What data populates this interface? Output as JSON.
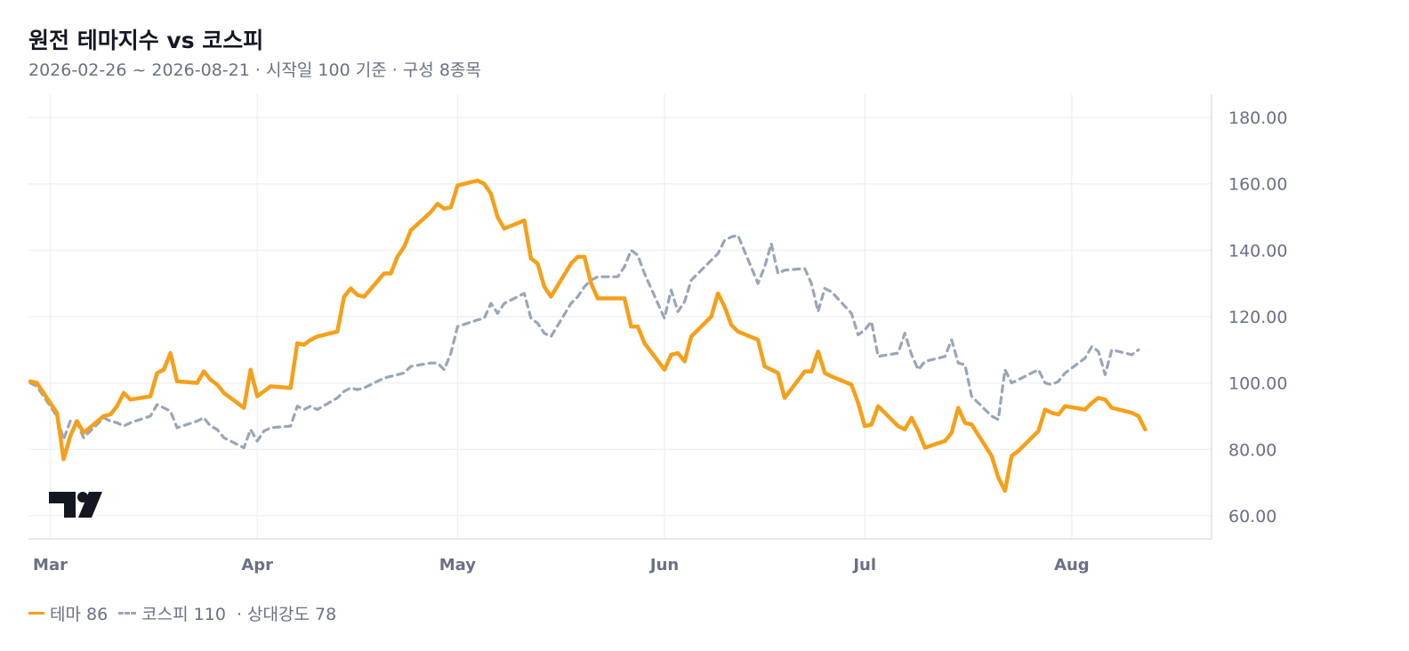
{
  "header": {
    "title": "원전 테마지수 vs 코스피",
    "subtitle": "2026-02-26 ~ 2026-08-21 · 시작일 100 기준 · 구성 8종목"
  },
  "legend": {
    "theme_label": "테마 86",
    "kospi_label": "코스피 110",
    "strength_label": "· 상대강도 78"
  },
  "colors": {
    "theme": "#f5a01a",
    "kospi": "#9aa5b8",
    "grid": "#eef1f5",
    "axis_text": "#6a7185"
  },
  "chart_data": {
    "type": "line",
    "x_start": "2026-02-26",
    "x_end": "2026-08-21",
    "ylim": [
      53,
      187
    ],
    "y_ticks": [
      "180.00",
      "160.00",
      "140.00",
      "120.00",
      "100.00",
      "80.00",
      "60.00"
    ],
    "y_tick_values": [
      180,
      160,
      140,
      120,
      100,
      80,
      60
    ],
    "x_ticks": [
      {
        "label": "Mar",
        "date": "2026-03-01"
      },
      {
        "label": "Apr",
        "date": "2026-04-01"
      },
      {
        "label": "May",
        "date": "2026-05-01"
      },
      {
        "label": "Jun",
        "date": "2026-06-01"
      },
      {
        "label": "Jul",
        "date": "2026-07-01"
      },
      {
        "label": "Aug",
        "date": "2026-08-01"
      }
    ],
    "grid": true,
    "series": [
      {
        "name": "테마",
        "style": "solid",
        "points": [
          [
            "2026-02-26",
            100.5
          ],
          [
            "2026-02-27",
            100
          ],
          [
            "2026-03-02",
            91
          ],
          [
            "2026-03-03",
            77
          ],
          [
            "2026-03-04",
            84
          ],
          [
            "2026-03-05",
            88.5
          ],
          [
            "2026-03-06",
            85
          ],
          [
            "2026-03-09",
            90
          ],
          [
            "2026-03-10",
            90.5
          ],
          [
            "2026-03-11",
            93
          ],
          [
            "2026-03-12",
            97
          ],
          [
            "2026-03-13",
            95
          ],
          [
            "2026-03-16",
            96
          ],
          [
            "2026-03-17",
            103
          ],
          [
            "2026-03-18",
            104
          ],
          [
            "2026-03-19",
            109
          ],
          [
            "2026-03-20",
            100.5
          ],
          [
            "2026-03-23",
            100
          ],
          [
            "2026-03-24",
            103.5
          ],
          [
            "2026-03-25",
            101
          ],
          [
            "2026-03-26",
            99.5
          ],
          [
            "2026-03-27",
            97
          ],
          [
            "2026-03-30",
            92.5
          ],
          [
            "2026-03-31",
            104
          ],
          [
            "2026-04-01",
            96
          ],
          [
            "2026-04-02",
            97.5
          ],
          [
            "2026-04-03",
            99
          ],
          [
            "2026-04-06",
            98.5
          ],
          [
            "2026-04-07",
            112
          ],
          [
            "2026-04-08",
            111.5
          ],
          [
            "2026-04-09",
            113
          ],
          [
            "2026-04-10",
            114
          ],
          [
            "2026-04-13",
            115.5
          ],
          [
            "2026-04-14",
            126
          ],
          [
            "2026-04-15",
            128.5
          ],
          [
            "2026-04-16",
            126.5
          ],
          [
            "2026-04-17",
            126
          ],
          [
            "2026-04-20",
            133
          ],
          [
            "2026-04-21",
            133
          ],
          [
            "2026-04-22",
            138
          ],
          [
            "2026-04-23",
            141
          ],
          [
            "2026-04-24",
            146
          ],
          [
            "2026-04-27",
            151.5
          ],
          [
            "2026-04-28",
            154
          ],
          [
            "2026-04-29",
            152.5
          ],
          [
            "2026-04-30",
            153
          ],
          [
            "2026-05-01",
            159.5
          ],
          [
            "2026-05-04",
            161
          ],
          [
            "2026-05-05",
            160
          ],
          [
            "2026-05-06",
            157
          ],
          [
            "2026-05-07",
            150
          ],
          [
            "2026-05-08",
            146.5
          ],
          [
            "2026-05-11",
            149
          ],
          [
            "2026-05-12",
            137.5
          ],
          [
            "2026-05-13",
            136
          ],
          [
            "2026-05-14",
            129
          ],
          [
            "2026-05-15",
            126
          ],
          [
            "2026-05-18",
            136
          ],
          [
            "2026-05-19",
            138
          ],
          [
            "2026-05-20",
            138
          ],
          [
            "2026-05-21",
            130
          ],
          [
            "2026-05-22",
            125.5
          ],
          [
            "2026-05-25",
            125.5
          ],
          [
            "2026-05-26",
            125.5
          ],
          [
            "2026-05-27",
            117
          ],
          [
            "2026-05-28",
            117
          ],
          [
            "2026-05-29",
            112
          ],
          [
            "2026-06-01",
            104
          ],
          [
            "2026-06-02",
            108.5
          ],
          [
            "2026-06-03",
            109
          ],
          [
            "2026-06-04",
            106.5
          ],
          [
            "2026-06-05",
            114
          ],
          [
            "2026-06-08",
            120
          ],
          [
            "2026-06-09",
            127
          ],
          [
            "2026-06-10",
            123
          ],
          [
            "2026-06-11",
            117.5
          ],
          [
            "2026-06-12",
            115.5
          ],
          [
            "2026-06-15",
            113
          ],
          [
            "2026-06-16",
            105
          ],
          [
            "2026-06-17",
            104
          ],
          [
            "2026-06-18",
            103
          ],
          [
            "2026-06-19",
            95.5
          ],
          [
            "2026-06-22",
            103.5
          ],
          [
            "2026-06-23",
            103.5
          ],
          [
            "2026-06-24",
            109.5
          ],
          [
            "2026-06-25",
            103
          ],
          [
            "2026-06-26",
            102
          ],
          [
            "2026-06-29",
            99.5
          ],
          [
            "2026-06-30",
            94
          ],
          [
            "2026-07-01",
            87
          ],
          [
            "2026-07-02",
            87.5
          ],
          [
            "2026-07-03",
            93
          ],
          [
            "2026-07-06",
            87
          ],
          [
            "2026-07-07",
            86
          ],
          [
            "2026-07-08",
            89.5
          ],
          [
            "2026-07-09",
            85.5
          ],
          [
            "2026-07-10",
            80.5
          ],
          [
            "2026-07-13",
            82.5
          ],
          [
            "2026-07-14",
            85
          ],
          [
            "2026-07-15",
            92.5
          ],
          [
            "2026-07-16",
            88
          ],
          [
            "2026-07-17",
            87.5
          ],
          [
            "2026-07-20",
            78
          ],
          [
            "2026-07-21",
            71.5
          ],
          [
            "2026-07-22",
            67.5
          ],
          [
            "2026-07-23",
            78
          ],
          [
            "2026-07-24",
            79.5
          ],
          [
            "2026-07-27",
            85.5
          ],
          [
            "2026-07-28",
            92
          ],
          [
            "2026-07-29",
            91
          ],
          [
            "2026-07-30",
            90.5
          ],
          [
            "2026-07-31",
            93
          ],
          [
            "2026-08-03",
            92
          ],
          [
            "2026-08-04",
            94
          ],
          [
            "2026-08-05",
            95.5
          ],
          [
            "2026-08-06",
            95
          ],
          [
            "2026-08-07",
            92.5
          ],
          [
            "2026-08-10",
            91
          ],
          [
            "2026-08-11",
            90
          ],
          [
            "2026-08-12",
            86
          ]
        ]
      },
      {
        "name": "코스피",
        "style": "dashed",
        "points": [
          [
            "2026-02-26",
            100
          ],
          [
            "2026-02-27",
            99
          ],
          [
            "2026-03-02",
            90
          ],
          [
            "2026-03-03",
            83
          ],
          [
            "2026-03-04",
            88.5
          ],
          [
            "2026-03-05",
            88
          ],
          [
            "2026-03-06",
            83.5
          ],
          [
            "2026-03-09",
            89.5
          ],
          [
            "2026-03-10",
            88.5
          ],
          [
            "2026-03-11",
            88
          ],
          [
            "2026-03-12",
            87
          ],
          [
            "2026-03-13",
            88
          ],
          [
            "2026-03-16",
            90
          ],
          [
            "2026-03-17",
            93.5
          ],
          [
            "2026-03-18",
            92.5
          ],
          [
            "2026-03-19",
            91.5
          ],
          [
            "2026-03-20",
            86.5
          ],
          [
            "2026-03-23",
            88.5
          ],
          [
            "2026-03-24",
            89.5
          ],
          [
            "2026-03-25",
            87
          ],
          [
            "2026-03-26",
            86
          ],
          [
            "2026-03-27",
            83.5
          ],
          [
            "2026-03-30",
            80.5
          ],
          [
            "2026-03-31",
            86
          ],
          [
            "2026-04-01",
            82.5
          ],
          [
            "2026-04-02",
            85.5
          ],
          [
            "2026-04-03",
            86.5
          ],
          [
            "2026-04-06",
            87
          ],
          [
            "2026-04-07",
            93
          ],
          [
            "2026-04-08",
            92
          ],
          [
            "2026-04-09",
            93
          ],
          [
            "2026-04-10",
            92
          ],
          [
            "2026-04-13",
            95.5
          ],
          [
            "2026-04-14",
            97.5
          ],
          [
            "2026-04-15",
            98.5
          ],
          [
            "2026-04-16",
            98
          ],
          [
            "2026-04-17",
            98.5
          ],
          [
            "2026-04-20",
            101.5
          ],
          [
            "2026-04-21",
            102
          ],
          [
            "2026-04-22",
            102.5
          ],
          [
            "2026-04-23",
            103
          ],
          [
            "2026-04-24",
            105
          ],
          [
            "2026-04-27",
            106
          ],
          [
            "2026-04-28",
            106
          ],
          [
            "2026-04-29",
            104
          ],
          [
            "2026-04-30",
            109
          ],
          [
            "2026-05-01",
            117
          ],
          [
            "2026-05-04",
            119
          ],
          [
            "2026-05-05",
            119.5
          ],
          [
            "2026-05-06",
            124
          ],
          [
            "2026-05-07",
            121
          ],
          [
            "2026-05-08",
            124
          ],
          [
            "2026-05-11",
            127
          ],
          [
            "2026-05-12",
            119.5
          ],
          [
            "2026-05-13",
            118
          ],
          [
            "2026-05-14",
            115
          ],
          [
            "2026-05-15",
            114
          ],
          [
            "2026-05-18",
            124
          ],
          [
            "2026-05-19",
            126
          ],
          [
            "2026-05-20",
            129
          ],
          [
            "2026-05-21",
            131
          ],
          [
            "2026-05-22",
            132
          ],
          [
            "2026-05-25",
            132
          ],
          [
            "2026-05-26",
            135
          ],
          [
            "2026-05-27",
            140
          ],
          [
            "2026-05-28",
            138.5
          ],
          [
            "2026-05-29",
            133
          ],
          [
            "2026-06-01",
            119.5
          ],
          [
            "2026-06-02",
            128
          ],
          [
            "2026-06-03",
            121.5
          ],
          [
            "2026-06-04",
            124.5
          ],
          [
            "2026-06-05",
            131
          ],
          [
            "2026-06-08",
            137
          ],
          [
            "2026-06-09",
            139
          ],
          [
            "2026-06-10",
            143
          ],
          [
            "2026-06-11",
            144
          ],
          [
            "2026-06-12",
            144.5
          ],
          [
            "2026-06-15",
            130
          ],
          [
            "2026-06-16",
            135
          ],
          [
            "2026-06-17",
            142
          ],
          [
            "2026-06-18",
            133
          ],
          [
            "2026-06-19",
            134
          ],
          [
            "2026-06-22",
            134.5
          ],
          [
            "2026-06-23",
            130
          ],
          [
            "2026-06-24",
            121.5
          ],
          [
            "2026-06-25",
            128.5
          ],
          [
            "2026-06-26",
            127.5
          ],
          [
            "2026-06-29",
            121
          ],
          [
            "2026-06-30",
            114.5
          ],
          [
            "2026-07-01",
            116
          ],
          [
            "2026-07-02",
            118.5
          ],
          [
            "2026-07-03",
            108
          ],
          [
            "2026-07-06",
            109
          ],
          [
            "2026-07-07",
            115
          ],
          [
            "2026-07-08",
            108.5
          ],
          [
            "2026-07-09",
            104
          ],
          [
            "2026-07-10",
            106.5
          ],
          [
            "2026-07-13",
            108
          ],
          [
            "2026-07-14",
            113
          ],
          [
            "2026-07-15",
            106
          ],
          [
            "2026-07-16",
            105.5
          ],
          [
            "2026-07-17",
            96
          ],
          [
            "2026-07-20",
            90
          ],
          [
            "2026-07-21",
            89
          ],
          [
            "2026-07-22",
            104
          ],
          [
            "2026-07-23",
            100
          ],
          [
            "2026-07-24",
            101
          ],
          [
            "2026-07-27",
            104
          ],
          [
            "2026-07-28",
            100
          ],
          [
            "2026-07-29",
            99.5
          ],
          [
            "2026-07-30",
            100.5
          ],
          [
            "2026-07-31",
            103
          ],
          [
            "2026-08-03",
            107.5
          ],
          [
            "2026-08-04",
            111
          ],
          [
            "2026-08-05",
            109.5
          ],
          [
            "2026-08-06",
            102.5
          ],
          [
            "2026-08-07",
            110
          ],
          [
            "2026-08-10",
            108.5
          ],
          [
            "2026-08-11",
            110
          ]
        ]
      }
    ]
  }
}
